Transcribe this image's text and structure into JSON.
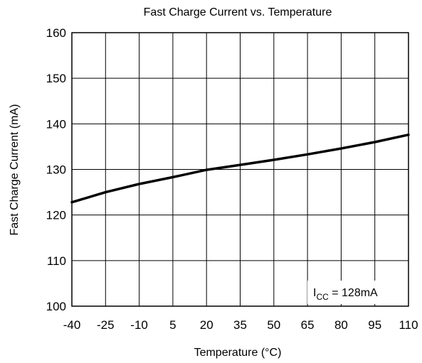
{
  "chart_data": {
    "type": "line",
    "title": "Fast Charge Current vs. Temperature",
    "xlabel": "Temperature (°C)",
    "ylabel": "Fast Charge Current (mA)",
    "xlim": [
      -40,
      110
    ],
    "ylim": [
      100,
      160
    ],
    "x_ticks": [
      -40,
      -25,
      -10,
      5,
      20,
      35,
      50,
      65,
      80,
      95,
      110
    ],
    "x_tick_labels": [
      "-40",
      "-25",
      "-10",
      "5",
      "20",
      "35",
      "50",
      "65",
      "80",
      "95",
      "110"
    ],
    "y_ticks": [
      100,
      110,
      120,
      130,
      140,
      150,
      160
    ],
    "y_tick_labels": [
      "100",
      "110",
      "120",
      "130",
      "140",
      "150",
      "160"
    ],
    "grid": true,
    "series": [
      {
        "x": [
          -40,
          -25,
          -10,
          5,
          20,
          35,
          50,
          65,
          80,
          95,
          110
        ],
        "y": [
          122.8,
          125.0,
          126.8,
          128.3,
          129.9,
          131.0,
          132.1,
          133.3,
          134.6,
          136.0,
          137.6
        ],
        "color": "#000000"
      }
    ],
    "annotation": {
      "prefix": "I",
      "subscript": "CC",
      "suffix": " = 128mA"
    }
  }
}
